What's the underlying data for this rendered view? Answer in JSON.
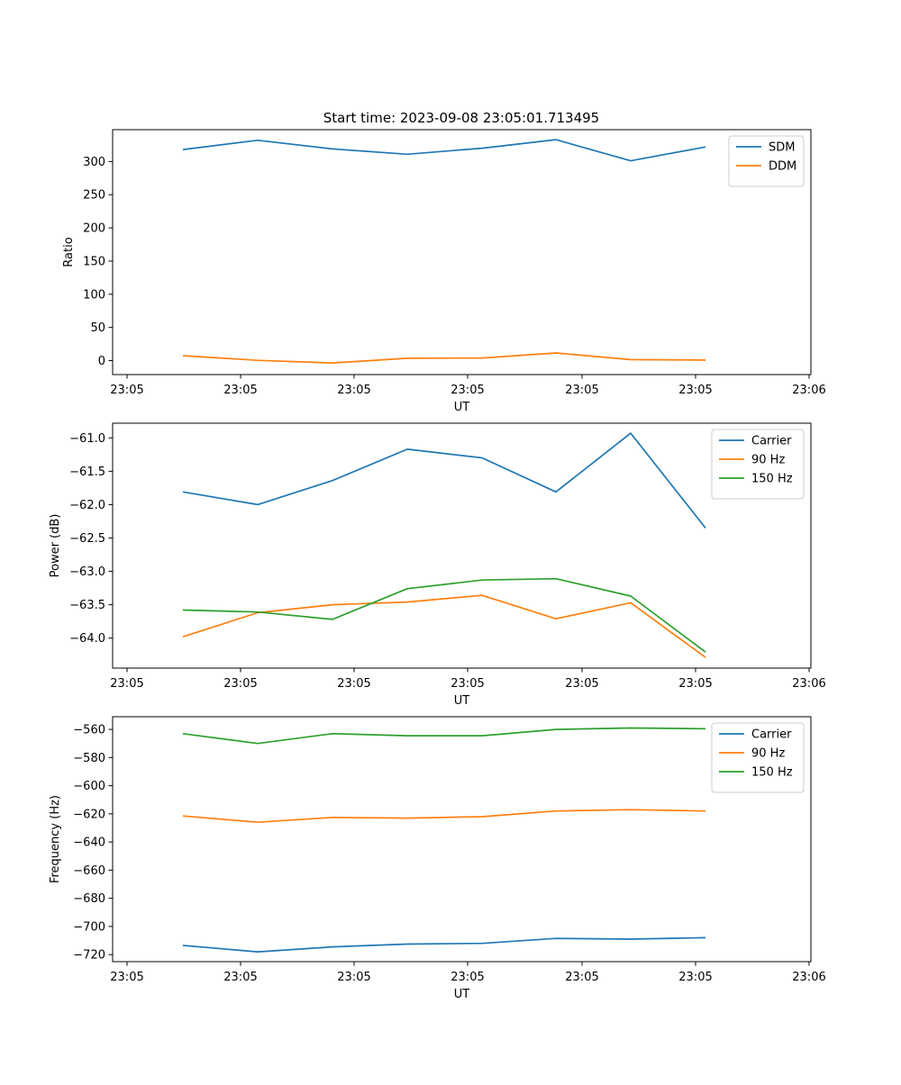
{
  "figure_title": "Start time: 2023-09-08 23:05:01.713495",
  "x_tick_labels": [
    "23:05",
    "23:05",
    "23:05",
    "23:05",
    "23:05",
    "23:05",
    "23:06"
  ],
  "colors": {
    "blue": "#1f77b4",
    "orange": "#ff7f0e",
    "green": "#2ca02c"
  },
  "chart_data": [
    {
      "type": "line",
      "title": "Start time: 2023-09-08 23:05:01.713495",
      "xlabel": "UT",
      "ylabel": "Ratio",
      "x": [
        1.5,
        2.5,
        3.5,
        4.5,
        5.5,
        6.5,
        7.5,
        8.5
      ],
      "xlim": [
        0.3,
        9.5
      ],
      "ylim": [
        -21,
        348
      ],
      "yticks": [
        0,
        50,
        100,
        150,
        200,
        250,
        300
      ],
      "ytick_labels": [
        "0",
        "50",
        "100",
        "150",
        "200",
        "250",
        "300"
      ],
      "legend": "top-right",
      "series": [
        {
          "name": "SDM",
          "color": "#1f77b4",
          "values": [
            318,
            332,
            319,
            311,
            320,
            333,
            301,
            322
          ]
        },
        {
          "name": "DDM",
          "color": "#ff7f0e",
          "values": [
            7.5,
            0.5,
            -3.5,
            3.5,
            4,
            11.5,
            1.5,
            0.8
          ]
        }
      ]
    },
    {
      "type": "line",
      "title": "",
      "xlabel": "UT",
      "ylabel": "Power (dB)",
      "x": [
        1.5,
        2.5,
        3.5,
        4.5,
        5.5,
        6.5,
        7.5,
        8.5
      ],
      "xlim": [
        0.3,
        9.5
      ],
      "ylim": [
        -64.45,
        -60.78
      ],
      "yticks": [
        -61.0,
        -61.5,
        -62.0,
        -62.5,
        -63.0,
        -63.5,
        -64.0
      ],
      "ytick_labels": [
        "−61.0",
        "−61.5",
        "−62.0",
        "−62.5",
        "−63.0",
        "−63.5",
        "−64.0"
      ],
      "legend": "top-right",
      "series": [
        {
          "name": "Carrier",
          "color": "#1f77b4",
          "values": [
            -61.81,
            -62.0,
            -61.64,
            -61.17,
            -61.3,
            -61.81,
            -60.93,
            -62.35
          ]
        },
        {
          "name": "90 Hz",
          "color": "#ff7f0e",
          "values": [
            -63.98,
            -63.62,
            -63.5,
            -63.46,
            -63.36,
            -63.71,
            -63.47,
            -64.29
          ]
        },
        {
          "name": "150 Hz",
          "color": "#2ca02c",
          "values": [
            -63.58,
            -63.61,
            -63.72,
            -63.26,
            -63.13,
            -63.11,
            -63.37,
            -64.21
          ]
        }
      ]
    },
    {
      "type": "line",
      "title": "",
      "xlabel": "UT",
      "ylabel": "Frequency (Hz)",
      "x": [
        1.5,
        2.5,
        3.5,
        4.5,
        5.5,
        6.5,
        7.5,
        8.5
      ],
      "xlim": [
        0.3,
        9.5
      ],
      "ylim": [
        -725,
        -551
      ],
      "yticks": [
        -560,
        -580,
        -600,
        -620,
        -640,
        -660,
        -680,
        -700,
        -720
      ],
      "ytick_labels": [
        "−560",
        "−580",
        "−600",
        "−620",
        "−640",
        "−660",
        "−680",
        "−700",
        "−720"
      ],
      "legend": "top-right",
      "series": [
        {
          "name": "Carrier",
          "color": "#1f77b4",
          "values": [
            -713.5,
            -718,
            -714.5,
            -712.5,
            -712,
            -708.5,
            -709,
            -708
          ]
        },
        {
          "name": "90 Hz",
          "color": "#ff7f0e",
          "values": [
            -621.5,
            -626,
            -622.5,
            -623,
            -622,
            -618,
            -617,
            -618
          ]
        },
        {
          "name": "150 Hz",
          "color": "#2ca02c",
          "values": [
            -563,
            -570,
            -563,
            -564.5,
            -564.5,
            -560,
            -559,
            -559.5
          ]
        }
      ]
    }
  ]
}
